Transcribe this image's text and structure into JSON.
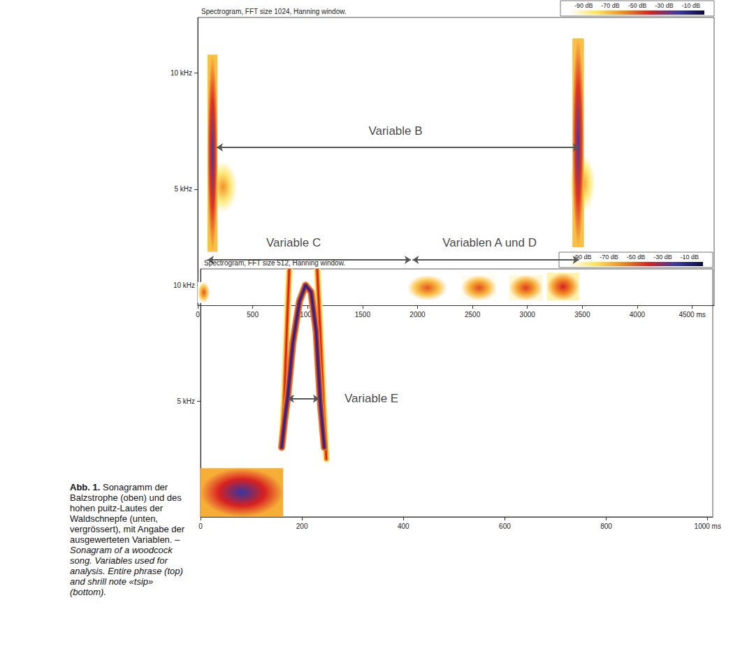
{
  "chart_data": [
    {
      "type": "spectrogram",
      "title": "Spectrogram, FFT size 1024, Hanning window.",
      "xlim": [
        0,
        4700
      ],
      "xticks": [
        0,
        500,
        1000,
        1500,
        2000,
        2500,
        3000,
        3500,
        4000,
        {
          "value": 4500,
          "label": "4500 ms"
        }
      ],
      "ylim": [
        0,
        12.4
      ],
      "yticks": [
        {
          "value": 5,
          "label": "5 kHz"
        },
        {
          "value": 10,
          "label": "10 kHz"
        }
      ],
      "grid": false,
      "color_scale": {
        "range": [
          -100,
          0
        ],
        "ticks": [
          {
            "value": -90,
            "label": "-90 dB"
          },
          {
            "value": -70,
            "label": "-70 dB"
          },
          {
            "value": -50,
            "label": "-50 dB"
          },
          {
            "value": -30,
            "label": "-30 dB"
          },
          {
            "value": -10,
            "label": "-10 dB"
          }
        ],
        "colors": [
          "#ffffff",
          "#ffe45a",
          "#f08a20",
          "#d82020",
          "#3b3aa8",
          "#0a0a40"
        ]
      },
      "sounds": [
        {
          "shape": "band",
          "time": [
            0,
            110
          ],
          "freq": [
            0.1,
            1.0
          ],
          "db": -50
        },
        {
          "shape": "band",
          "time": [
            100,
            360
          ],
          "freq": [
            4.0,
            6.2
          ],
          "db": -62
        },
        {
          "shape": "band",
          "time": [
            89,
            180
          ],
          "freq": [
            2.3,
            10.8
          ],
          "db": -22
        },
        {
          "shape": "band",
          "time": [
            1908,
            2272
          ],
          "freq": [
            0.2,
            1.3
          ],
          "db": -50
        },
        {
          "shape": "band",
          "time": [
            2400,
            2720
          ],
          "freq": [
            0.2,
            1.3
          ],
          "db": -48
        },
        {
          "shape": "band",
          "time": [
            2834,
            3140
          ],
          "freq": [
            0.2,
            1.3
          ],
          "db": -45
        },
        {
          "shape": "band",
          "time": [
            3178,
            3471
          ],
          "freq": [
            0.2,
            1.4
          ],
          "db": -40
        },
        {
          "shape": "band",
          "time": [
            3380,
            3620
          ],
          "freq": [
            4.0,
            6.5
          ],
          "db": -62
        },
        {
          "shape": "band",
          "time": [
            3410,
            3515
          ],
          "freq": [
            2.5,
            11.5
          ],
          "db": -22
        }
      ],
      "annotations": [
        {
          "text": "Variable B",
          "arrow": [
            [
              172,
              6.8
            ],
            [
              3470,
              6.8
            ]
          ],
          "at": [
            1800,
            7.5
          ]
        },
        {
          "text": "Variable C",
          "arrow": [
            [
              89,
              1.96
            ],
            [
              1940,
              1.96
            ]
          ],
          "at": [
            872,
            2.7
          ]
        },
        {
          "text": "Variablen A und D",
          "arrow": [
            [
              1955,
              1.96
            ],
            [
              3470,
              1.96
            ]
          ],
          "at": [
            2656,
            2.7
          ]
        }
      ]
    },
    {
      "type": "spectrogram",
      "title": "Spectrogram, FFT size 512, Hanning window.",
      "xlim": [
        0,
        1010
      ],
      "xticks": [
        0,
        200,
        400,
        600,
        800,
        {
          "value": 1000,
          "label": "1000 ms"
        }
      ],
      "ylim": [
        0,
        10.7
      ],
      "yticks": [
        {
          "value": 5,
          "label": "5 kHz"
        },
        {
          "value": 10,
          "label": "10 kHz"
        }
      ],
      "grid": false,
      "color_scale": {
        "range": [
          -100,
          0
        ],
        "ticks": [
          {
            "value": -90,
            "label": "-90 dB"
          },
          {
            "value": -70,
            "label": "-70 dB"
          },
          {
            "value": -50,
            "label": "-50 dB"
          },
          {
            "value": -30,
            "label": "-30 dB"
          },
          {
            "value": -10,
            "label": "-10 dB"
          }
        ],
        "colors": [
          "#ffffff",
          "#ffe45a",
          "#f08a20",
          "#d82020",
          "#3b3aa8",
          "#0a0a40"
        ]
      },
      "sounds": [
        {
          "shape": "band",
          "time": [
            0,
            163
          ],
          "freq": [
            0,
            2.1
          ],
          "db": -18
        },
        {
          "shape": "trace",
          "points": [
            [
              160,
              3.0
            ],
            [
              165,
              5.0
            ],
            [
              170,
              8.0
            ],
            [
              175,
              10.7
            ]
          ],
          "db": -40
        },
        {
          "shape": "trace",
          "points": [
            [
              230,
              10.7
            ],
            [
              236,
              8.0
            ],
            [
              242,
              5.0
            ],
            [
              248,
              2.5
            ]
          ],
          "db": -40
        },
        {
          "shape": "trace",
          "points": [
            [
              160,
              3.0
            ],
            [
              166,
              4.2
            ],
            [
              172,
              5.2
            ],
            [
              182,
              7.5
            ],
            [
              195,
              9.3
            ],
            [
              207,
              10.0
            ],
            [
              218,
              9.7
            ],
            [
              228,
              8.0
            ],
            [
              236,
              5.0
            ],
            [
              244,
              3.0
            ]
          ],
          "db": -12
        }
      ],
      "annotations": [
        {
          "text": "Variable E",
          "arrow": [
            [
              172,
              5.1
            ],
            [
              234,
              5.1
            ]
          ],
          "at": [
            337,
            5.1
          ]
        }
      ]
    }
  ],
  "caption": {
    "label": "Abb. 1.",
    "text_de": "Sonagramm der Balzstrophe (oben) und des hohen puitz-Lautes der Waldschnepfe (unten, vergrössert), mit Angabe der ausgewerteten Variablen. –",
    "text_en": "Sonagram of a woodcock song. Variables used for analysis. Entire phrase (top) and shrill note «tsip» (bottom)."
  }
}
